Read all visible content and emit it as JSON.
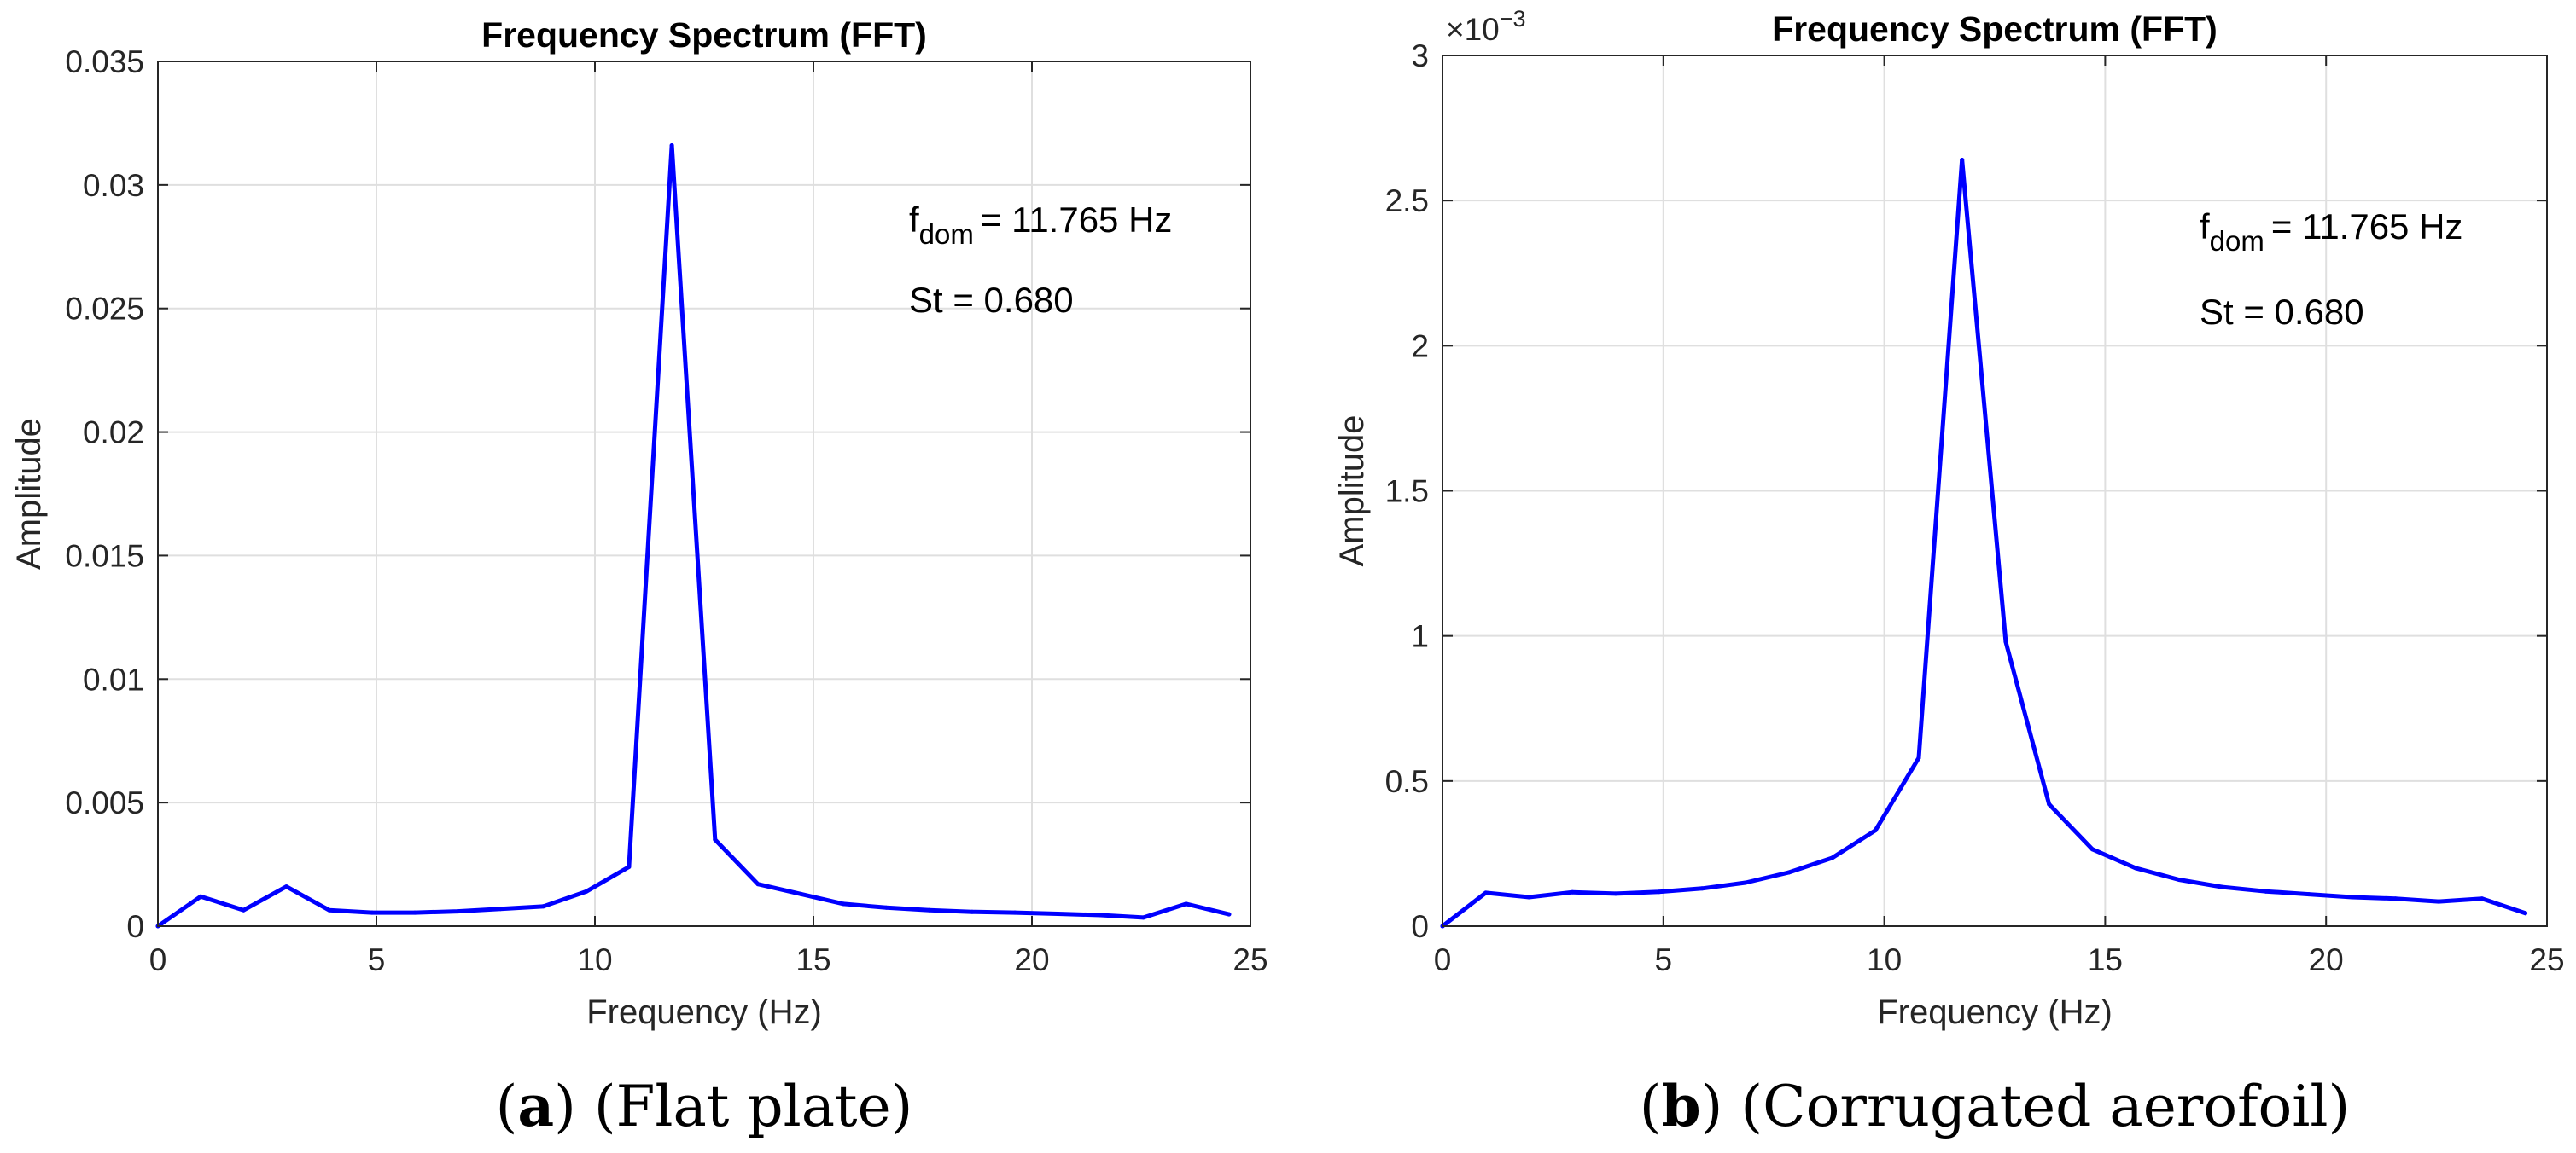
{
  "chart_data": [
    {
      "type": "line",
      "title": "Frequency Spectrum (FFT)",
      "xlabel": "Frequency (Hz)",
      "ylabel": "Amplitude",
      "xlim": [
        0,
        25
      ],
      "ylim": [
        0,
        0.035
      ],
      "xticks": [
        0,
        5,
        10,
        15,
        20,
        25
      ],
      "xtick_labels": [
        "0",
        "5",
        "10",
        "15",
        "20",
        "25"
      ],
      "yticks": [
        0,
        0.005,
        0.01,
        0.015,
        0.02,
        0.025,
        0.03,
        0.035
      ],
      "ytick_labels": [
        "0",
        "0.005",
        "0.01",
        "0.015",
        "0.02",
        "0.025",
        "0.03",
        "0.035"
      ],
      "grid": true,
      "color": "#0000ff",
      "annotation": {
        "f_symbol": "f",
        "f_subscript": "dom",
        "f_value": "= 11.765 Hz",
        "strouhal": "St = 0.680"
      },
      "caption": {
        "letter": "a",
        "text": "(Flat plate)"
      },
      "series": [
        {
          "name": "Flat plate",
          "x": [
            0,
            0.98,
            1.96,
            2.94,
            3.92,
            4.9,
            5.88,
            6.86,
            7.84,
            8.82,
            9.8,
            10.78,
            11.76,
            12.75,
            13.73,
            14.71,
            15.69,
            16.67,
            17.65,
            18.63,
            19.61,
            20.59,
            21.57,
            22.55,
            23.53,
            24.51
          ],
          "y": [
            0,
            0.0012,
            0.00065,
            0.0016,
            0.00065,
            0.00055,
            0.00055,
            0.0006,
            0.0007,
            0.0008,
            0.0014,
            0.0024,
            0.0316,
            0.0035,
            0.0017,
            0.0013,
            0.0009,
            0.00075,
            0.00065,
            0.00058,
            0.00055,
            0.0005,
            0.00045,
            0.00035,
            0.0009,
            0.00048
          ]
        }
      ]
    },
    {
      "type": "line",
      "title": "Frequency Spectrum (FFT)",
      "xlabel": "Frequency (Hz)",
      "ylabel": "Amplitude",
      "xlim": [
        0,
        25
      ],
      "ylim": [
        0,
        3
      ],
      "y_scale_label": {
        "base": "×10",
        "exponent": "−3"
      },
      "xticks": [
        0,
        5,
        10,
        15,
        20,
        25
      ],
      "xtick_labels": [
        "0",
        "5",
        "10",
        "15",
        "20",
        "25"
      ],
      "yticks": [
        0,
        0.5,
        1,
        1.5,
        2,
        2.5,
        3
      ],
      "ytick_labels": [
        "0",
        "0.5",
        "1",
        "1.5",
        "2",
        "2.5",
        "3"
      ],
      "grid": true,
      "color": "#0000ff",
      "annotation": {
        "f_symbol": "f",
        "f_subscript": "dom",
        "f_value": "= 11.765 Hz",
        "strouhal": "St = 0.680"
      },
      "caption": {
        "letter": "b",
        "text": "(Corrugated aerofoil)"
      },
      "series": [
        {
          "name": "Corrugated aerofoil",
          "x": [
            0,
            0.98,
            1.96,
            2.94,
            3.92,
            4.9,
            5.88,
            6.86,
            7.84,
            8.82,
            9.8,
            10.78,
            11.76,
            12.75,
            13.73,
            14.71,
            15.69,
            16.67,
            17.65,
            18.63,
            19.61,
            20.59,
            21.57,
            22.55,
            23.53,
            24.51
          ],
          "y": [
            0,
            0.115,
            0.1,
            0.117,
            0.112,
            0.118,
            0.13,
            0.15,
            0.185,
            0.235,
            0.33,
            0.58,
            2.64,
            0.98,
            0.42,
            0.265,
            0.2,
            0.16,
            0.135,
            0.12,
            0.11,
            0.1,
            0.095,
            0.085,
            0.095,
            0.045
          ]
        }
      ]
    }
  ]
}
